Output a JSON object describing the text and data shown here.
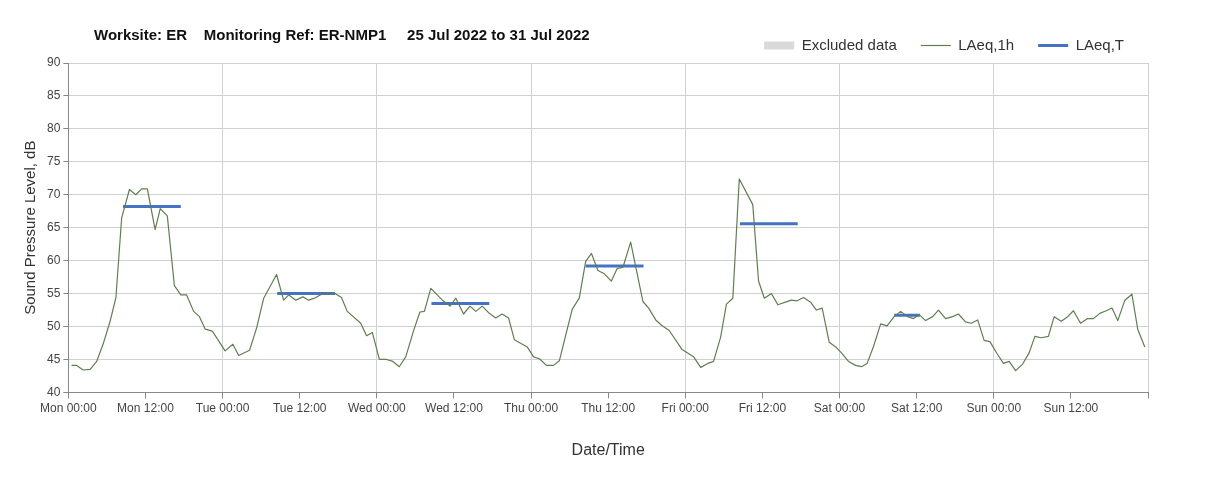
{
  "chart_data": {
    "type": "line",
    "title": "Worksite: ER    Monitoring Ref: ER-NMP1     25 Jul 2022 to 31 Jul 2022",
    "xlabel": "Date/Time",
    "ylabel": "Sound Pressure Level, dB",
    "xlim": [
      "2022-07-25T00:00",
      "2022-08-01T00:00"
    ],
    "xticks": [
      {
        "value": "2022-07-25T00:00",
        "label": "Mon 00:00"
      },
      {
        "value": "2022-07-25T12:00",
        "label": "Mon 12:00"
      },
      {
        "value": "2022-07-26T00:00",
        "label": "Tue 00:00"
      },
      {
        "value": "2022-07-26T12:00",
        "label": "Tue 12:00"
      },
      {
        "value": "2022-07-27T00:00",
        "label": "Wed 00:00"
      },
      {
        "value": "2022-07-27T12:00",
        "label": "Wed 12:00"
      },
      {
        "value": "2022-07-28T00:00",
        "label": "Thu 00:00"
      },
      {
        "value": "2022-07-28T12:00",
        "label": "Thu 12:00"
      },
      {
        "value": "2022-07-29T00:00",
        "label": "Fri 00:00"
      },
      {
        "value": "2022-07-29T12:00",
        "label": "Fri 12:00"
      },
      {
        "value": "2022-07-30T00:00",
        "label": "Sat 00:00"
      },
      {
        "value": "2022-07-30T12:00",
        "label": "Sat 12:00"
      },
      {
        "value": "2022-07-31T00:00",
        "label": "Sun 00:00"
      },
      {
        "value": "2022-07-31T12:00",
        "label": "Sun 12:00"
      },
      {
        "value": "2022-08-01T00:00",
        "label": null
      }
    ],
    "ylim": [
      40,
      90
    ],
    "yticks": [
      40,
      45,
      50,
      55,
      60,
      65,
      70,
      75,
      80,
      85,
      90
    ],
    "grid": true,
    "legend": "top right",
    "marker": "none",
    "line_style": "solid",
    "series": [
      {
        "name": "Excluded data",
        "type": "bar",
        "color": "#d9d9d9"
      },
      {
        "name": "LAeq,1h",
        "color": "#5f7f4f",
        "x": [
          "2022-07-25T00:30",
          "2022-07-25T01:18",
          "2022-07-25T02:18",
          "2022-07-25T03:24",
          "2022-07-25T04:24",
          "2022-07-25T05:24",
          "2022-07-25T06:30",
          "2022-07-25T07:24",
          "2022-07-25T08:18",
          "2022-07-25T09:30",
          "2022-07-25T10:30",
          "2022-07-25T11:24",
          "2022-07-25T12:18",
          "2022-07-25T13:30",
          "2022-07-25T14:18",
          "2022-07-25T15:24",
          "2022-07-25T16:30",
          "2022-07-25T17:30",
          "2022-07-25T18:24",
          "2022-07-25T19:30",
          "2022-07-25T20:24",
          "2022-07-25T21:18",
          "2022-07-25T22:24",
          "2022-07-26T00:24",
          "2022-07-26T01:36",
          "2022-07-26T02:30",
          "2022-07-26T04:12",
          "2022-07-26T05:18",
          "2022-07-26T06:24",
          "2022-07-26T08:24",
          "2022-07-26T09:30",
          "2022-07-26T10:18",
          "2022-07-26T11:24",
          "2022-07-26T12:30",
          "2022-07-26T13:24",
          "2022-07-26T14:18",
          "2022-07-26T15:24",
          "2022-07-26T17:30",
          "2022-07-26T18:30",
          "2022-07-26T19:24",
          "2022-07-26T21:30",
          "2022-07-26T22:24",
          "2022-07-26T23:18",
          "2022-07-27T00:24",
          "2022-07-27T01:30",
          "2022-07-27T02:30",
          "2022-07-27T03:30",
          "2022-07-27T04:30",
          "2022-07-27T05:42",
          "2022-07-27T06:42",
          "2022-07-27T07:24",
          "2022-07-27T08:24",
          "2022-07-27T10:12",
          "2022-07-27T11:24",
          "2022-07-27T12:18",
          "2022-07-27T13:30",
          "2022-07-27T14:30",
          "2022-07-27T15:24",
          "2022-07-27T16:24",
          "2022-07-27T17:30",
          "2022-07-27T18:30",
          "2022-07-27T19:30",
          "2022-07-27T20:30",
          "2022-07-27T21:24",
          "2022-07-27T23:24",
          "2022-07-28T00:24",
          "2022-07-28T01:18",
          "2022-07-28T02:24",
          "2022-07-28T03:30",
          "2022-07-28T04:24",
          "2022-07-28T05:18",
          "2022-07-28T06:24",
          "2022-07-28T07:30",
          "2022-07-28T08:30",
          "2022-07-28T09:24",
          "2022-07-28T10:24",
          "2022-07-28T11:24",
          "2022-07-28T12:30",
          "2022-07-28T13:24",
          "2022-07-28T14:18",
          "2022-07-28T15:30",
          "2022-07-28T17:24",
          "2022-07-28T18:18",
          "2022-07-28T19:24",
          "2022-07-28T20:18",
          "2022-07-28T21:30",
          "2022-07-28T23:30",
          "2022-07-29T01:18",
          "2022-07-29T02:24",
          "2022-07-29T03:30",
          "2022-07-29T04:24",
          "2022-07-29T05:30",
          "2022-07-29T06:24",
          "2022-07-29T07:24",
          "2022-07-29T08:24",
          "2022-07-29T10:30",
          "2022-07-29T11:24",
          "2022-07-29T12:18",
          "2022-07-29T13:24",
          "2022-07-29T14:24",
          "2022-07-29T15:36",
          "2022-07-29T16:30",
          "2022-07-29T17:24",
          "2022-07-29T18:24",
          "2022-07-29T19:30",
          "2022-07-29T20:24",
          "2022-07-29T21:18",
          "2022-07-29T22:24",
          "2022-07-29T23:24",
          "2022-07-30T00:18",
          "2022-07-30T01:24",
          "2022-07-30T02:30",
          "2022-07-30T03:24",
          "2022-07-30T04:18",
          "2022-07-30T05:18",
          "2022-07-30T06:24",
          "2022-07-30T07:24",
          "2022-07-30T08:30",
          "2022-07-30T09:30",
          "2022-07-30T10:36",
          "2022-07-30T11:30",
          "2022-07-30T12:24",
          "2022-07-30T13:24",
          "2022-07-30T14:30",
          "2022-07-30T15:24",
          "2022-07-30T16:30",
          "2022-07-30T17:36",
          "2022-07-30T18:30",
          "2022-07-30T19:36",
          "2022-07-30T20:30",
          "2022-07-30T21:30",
          "2022-07-30T22:30",
          "2022-07-30T23:24",
          "2022-07-31T00:30",
          "2022-07-31T01:30",
          "2022-07-31T02:24",
          "2022-07-31T03:24",
          "2022-07-31T04:30",
          "2022-07-31T05:30",
          "2022-07-31T06:24",
          "2022-07-31T07:24",
          "2022-07-31T08:30",
          "2022-07-31T09:24",
          "2022-07-31T10:30",
          "2022-07-31T11:30",
          "2022-07-31T12:24",
          "2022-07-31T13:30",
          "2022-07-31T14:36",
          "2022-07-31T15:30",
          "2022-07-31T16:30",
          "2022-07-31T17:30",
          "2022-07-31T18:24",
          "2022-07-31T19:18",
          "2022-07-31T20:24",
          "2022-07-31T21:30",
          "2022-07-31T22:24",
          "2022-07-31T23:30"
        ],
        "values": [
          44.1,
          44.1,
          43.4,
          43.5,
          44.7,
          47.3,
          50.8,
          54.4,
          66.5,
          70.8,
          70.0,
          70.9,
          70.9,
          64.7,
          67.9,
          66.8,
          56.2,
          54.8,
          54.8,
          52.3,
          51.5,
          49.6,
          49.3,
          46.3,
          47.3,
          45.6,
          46.4,
          49.8,
          54.3,
          57.9,
          54.0,
          54.8,
          54.0,
          54.5,
          54.0,
          54.3,
          54.9,
          55.0,
          54.4,
          52.3,
          50.5,
          48.6,
          49.1,
          45.0,
          45.0,
          44.7,
          43.9,
          45.4,
          49.3,
          52.2,
          52.3,
          55.8,
          54.0,
          53.1,
          54.3,
          51.9,
          53.1,
          52.3,
          53.1,
          52.0,
          51.3,
          51.9,
          51.3,
          48.0,
          46.9,
          45.4,
          45.1,
          44.1,
          44.1,
          44.8,
          48.3,
          52.6,
          54.3,
          59.9,
          61.1,
          58.5,
          58.0,
          56.9,
          58.8,
          59.0,
          62.8,
          53.8,
          52.8,
          51.0,
          50.2,
          49.4,
          46.5,
          45.4,
          43.8,
          44.4,
          44.7,
          48.4,
          53.4,
          54.3,
          72.4,
          68.5,
          56.9,
          54.3,
          55.0,
          53.3,
          53.7,
          54.0,
          53.9,
          54.4,
          53.7,
          52.5,
          52.8,
          47.6,
          46.9,
          46.0,
          44.7,
          44.1,
          43.9,
          44.4,
          47.0,
          50.4,
          50.1,
          51.5,
          52.3,
          51.5,
          51.2,
          51.8,
          50.9,
          51.5,
          52.5,
          51.2,
          51.5,
          51.9,
          50.7,
          50.5,
          51.0,
          47.9,
          47.7,
          45.9,
          44.4,
          44.7,
          43.3,
          44.3,
          46.0,
          48.5,
          48.3,
          48.5,
          51.5,
          50.8,
          51.5,
          52.4,
          50.5,
          51.2,
          51.2,
          52.0,
          52.4,
          52.8,
          50.9,
          54.0,
          54.9,
          49.6,
          46.9
        ]
      },
      {
        "name": "LAeq,T",
        "color": "#4472c4",
        "x": [
          "2022-07-25T08:30",
          "2022-07-25T17:30",
          "2022-07-25T20:00",
          "2022-07-26T08:30",
          "2022-07-26T17:30",
          "2022-07-26T20:00",
          "2022-07-27T08:30",
          "2022-07-27T17:30",
          "2022-07-27T20:00",
          "2022-07-28T08:30",
          "2022-07-28T17:30",
          "2022-07-28T20:00",
          "2022-07-29T08:30",
          "2022-07-29T17:30",
          "2022-07-29T20:00",
          "2022-07-30T08:30",
          "2022-07-30T12:30"
        ],
        "values": [
          68.2,
          68.2,
          null,
          55.0,
          55.0,
          null,
          53.5,
          53.5,
          null,
          59.2,
          59.2,
          null,
          65.6,
          65.6,
          null,
          51.7,
          51.7
        ]
      }
    ]
  }
}
